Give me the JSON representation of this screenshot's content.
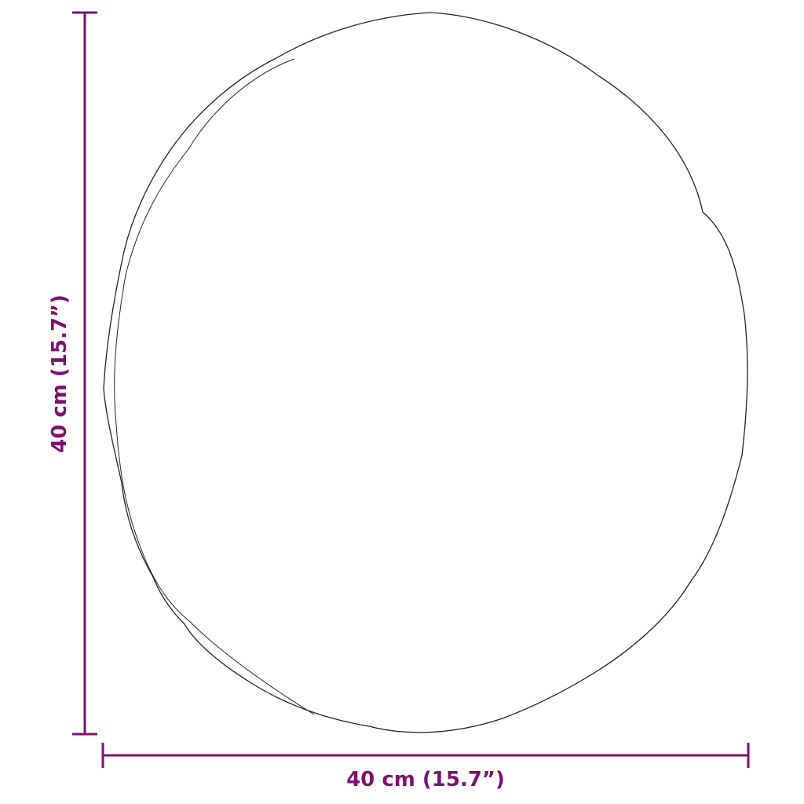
{
  "dimensions": {
    "width_label": "40 cm (15.7”)",
    "height_label": "40 cm (15.7”)"
  },
  "colors": {
    "dimension": "#7a1270",
    "outline": "#222222"
  },
  "shape": "round-mirror-outline"
}
